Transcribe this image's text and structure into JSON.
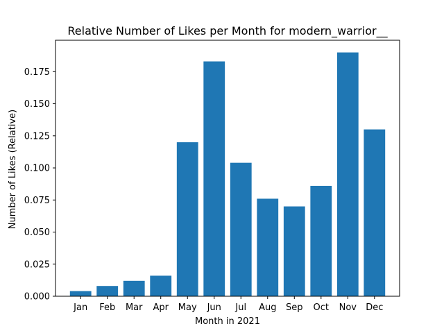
{
  "chart_data": {
    "type": "bar",
    "title": "Relative Number of Likes per Month for modern_warrior__",
    "xlabel": "Month in 2021",
    "ylabel": "Number of Likes (Relative)",
    "categories": [
      "Jan",
      "Feb",
      "Mar",
      "Apr",
      "May",
      "Jun",
      "Jul",
      "Aug",
      "Sep",
      "Oct",
      "Nov",
      "Dec"
    ],
    "values": [
      0.004,
      0.008,
      0.012,
      0.016,
      0.12,
      0.183,
      0.104,
      0.076,
      0.07,
      0.086,
      0.19,
      0.13
    ],
    "ylim": [
      0,
      0.1995
    ],
    "yticks": [
      0.0,
      0.025,
      0.05,
      0.075,
      0.1,
      0.125,
      0.15,
      0.175
    ],
    "ytick_labels": [
      "0.000",
      "0.025",
      "0.050",
      "0.075",
      "0.100",
      "0.125",
      "0.150",
      "0.175"
    ],
    "grid": false,
    "legend": "none",
    "bar_color": "#1f77b4",
    "axis_color": "#000000"
  }
}
